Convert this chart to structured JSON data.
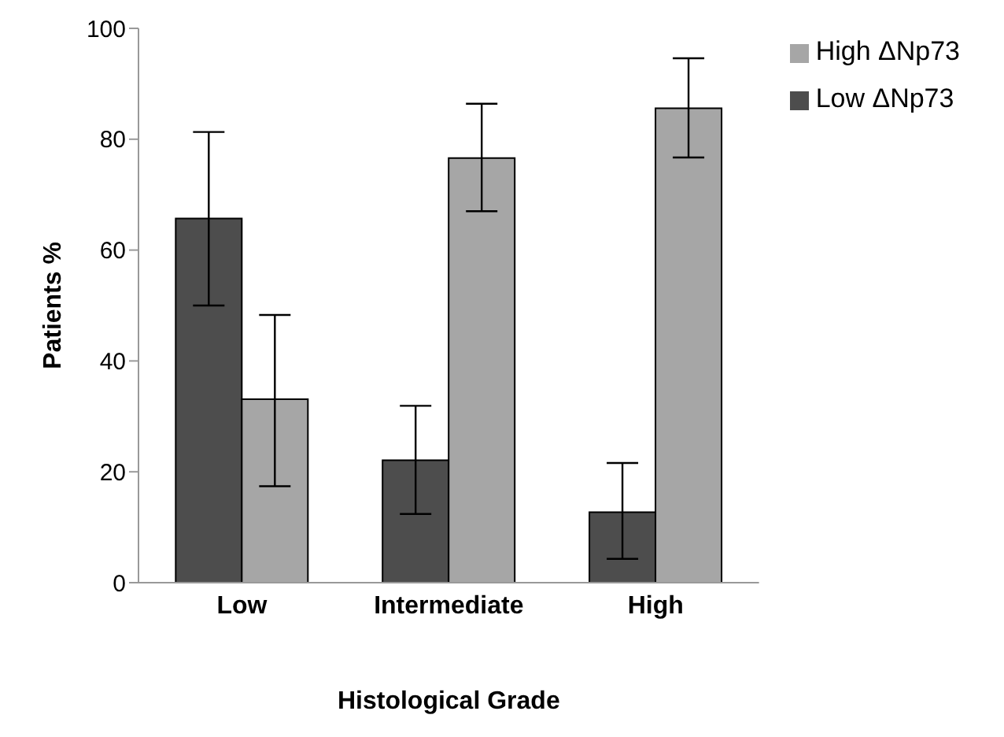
{
  "chart_data": {
    "type": "bar",
    "xlabel": "Histological Grade",
    "ylabel": "Patients %",
    "categories": [
      "Low",
      "Intermediate",
      "High"
    ],
    "series": [
      {
        "name": "Low ΔNp73",
        "color": "#4d4d4d",
        "values": [
          65.7,
          22.1,
          12.7
        ],
        "errors": [
          [
            50.0,
            81.3
          ],
          [
            12.4,
            31.9
          ],
          [
            4.3,
            21.6
          ]
        ]
      },
      {
        "name": "High ΔNp73",
        "color": "#a6a6a6",
        "values": [
          33.1,
          76.6,
          85.6
        ],
        "errors": [
          [
            17.4,
            48.3
          ],
          [
            67.0,
            86.4
          ],
          [
            76.7,
            94.6
          ]
        ]
      }
    ],
    "ylim": [
      0,
      100
    ],
    "yticks": [
      0,
      20,
      40,
      60,
      80,
      100
    ],
    "grid": false,
    "legend": "top right"
  }
}
